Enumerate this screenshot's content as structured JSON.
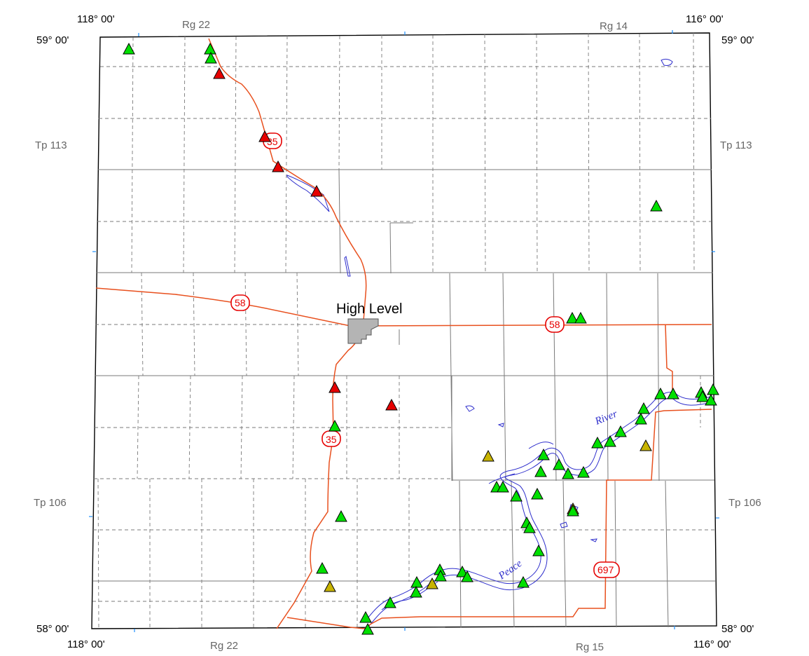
{
  "corner_labels": {
    "top_left_lon": "118° 00'",
    "top_right_lon": "116° 00'",
    "bottom_left_lon": "118° 00'",
    "bottom_right_lon": "116° 00'",
    "top_left_lat": "59° 00'",
    "top_right_lat": "59° 00'",
    "bottom_left_lat": "58° 00'",
    "bottom_right_lat": "58° 00'"
  },
  "grid_labels": {
    "top_range_left": "Rg 22",
    "top_range_right": "Rg 14",
    "bottom_range_left": "Rg 22",
    "bottom_range_right": "Rg 15",
    "left_twp_upper": "Tp 113",
    "right_twp_upper": "Tp 113",
    "left_twp_lower": "Tp 106",
    "right_twp_lower": "Tp 106"
  },
  "places": {
    "town": "High Level",
    "river_word_1": "River",
    "river_word_2": "Peace"
  },
  "highways": {
    "hwy_35_north": "35",
    "hwy_35_south": "35",
    "hwy_58_west": "58",
    "hwy_58_east": "58",
    "hwy_697": "697"
  },
  "colors": {
    "road": "#e8501e",
    "water": "#2e2ecc",
    "grid_solid": "#7a7a7a",
    "grid_dashed": "#7a7a7a",
    "town_fill": "#b4b4b4",
    "marker_green": "#00e000",
    "marker_red": "#e60000",
    "marker_olive": "#c8b400"
  },
  "marker_legend_names": [
    "green-triangle",
    "red-triangle",
    "olive-triangle"
  ]
}
